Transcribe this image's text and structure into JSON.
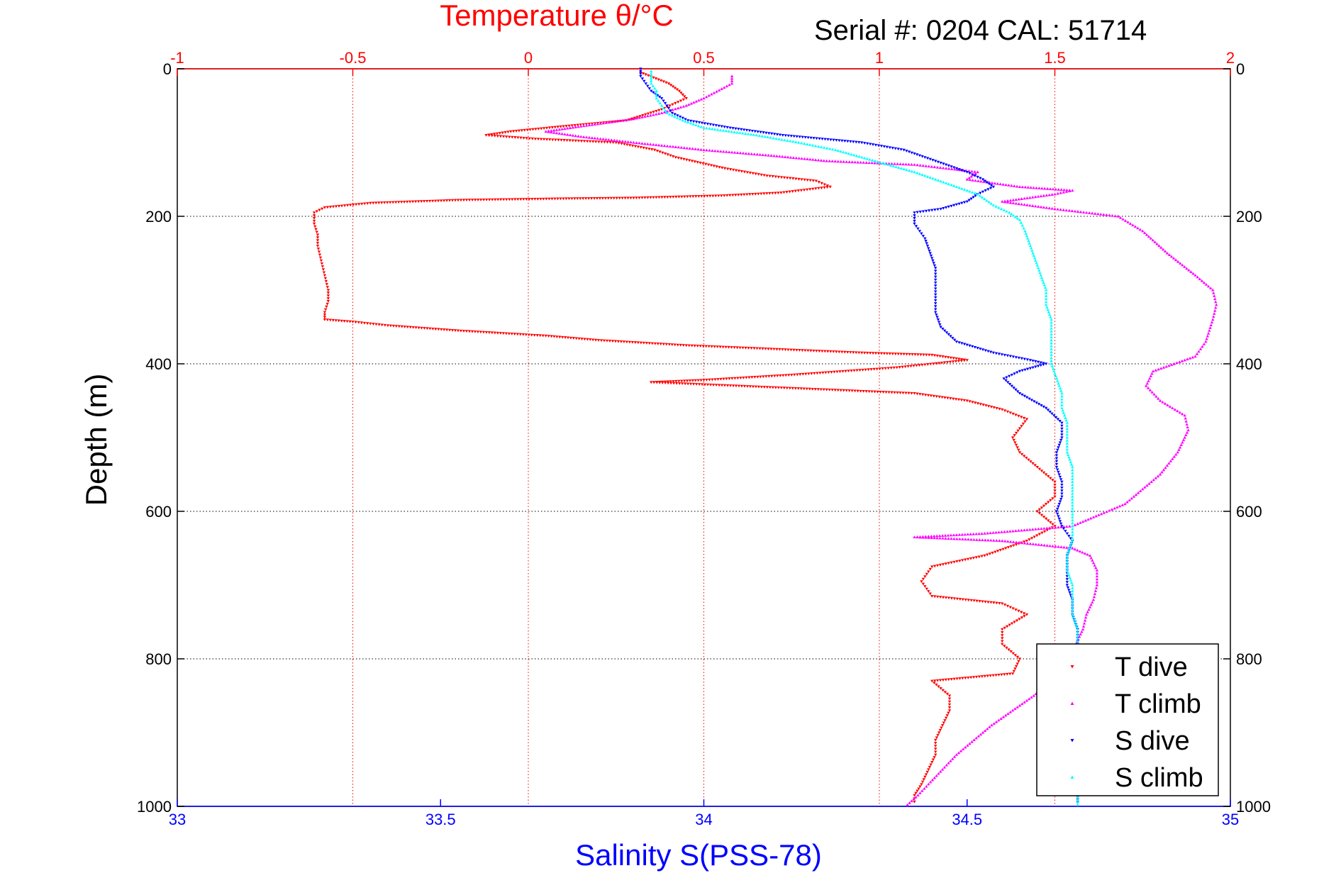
{
  "serial_text": "Serial #: 0204   CAL: 51714",
  "colors": {
    "t_dive": "#ff0000",
    "t_climb": "#ff00ff",
    "s_dive": "#0000ff",
    "s_climb": "#00ffff",
    "top_axis": "#ff0000",
    "bottom_axis": "#0000ff",
    "grid": "#000000"
  },
  "chart_data": {
    "type": "scatter",
    "top_axis": {
      "label": "Temperature θ/°C",
      "range": [
        -1,
        2
      ],
      "ticks": [
        "-1",
        "-0.5",
        "0",
        "0.5",
        "1",
        "1.5",
        "2"
      ]
    },
    "bottom_axis": {
      "label": "Salinity S(PSS-78)",
      "range": [
        33,
        35
      ],
      "ticks": [
        "33",
        "33.5",
        "34",
        "34.5",
        "35"
      ]
    },
    "y_axis": {
      "label": "Depth (m)",
      "range": [
        0,
        1000
      ],
      "reversed": true,
      "ticks": [
        "0",
        "200",
        "400",
        "600",
        "800",
        "1000"
      ]
    },
    "grid": true,
    "legend_position": "bottom-right",
    "series": [
      {
        "name": "T dive",
        "axis": "temperature",
        "points": [
          [
            0.32,
            5
          ],
          [
            0.4,
            20
          ],
          [
            0.43,
            30
          ],
          [
            0.45,
            40
          ],
          [
            0.38,
            55
          ],
          [
            0.28,
            70
          ],
          [
            0.1,
            78
          ],
          [
            -0.05,
            85
          ],
          [
            -0.12,
            90
          ],
          [
            0.02,
            95
          ],
          [
            0.25,
            100
          ],
          [
            0.36,
            110
          ],
          [
            0.42,
            120
          ],
          [
            0.56,
            135
          ],
          [
            0.68,
            145
          ],
          [
            0.82,
            152
          ],
          [
            0.86,
            160
          ],
          [
            0.72,
            168
          ],
          [
            0.55,
            172
          ],
          [
            0.3,
            175
          ],
          [
            0.1,
            176
          ],
          [
            -0.2,
            178
          ],
          [
            -0.45,
            182
          ],
          [
            -0.58,
            188
          ],
          [
            -0.61,
            195
          ],
          [
            -0.61,
            210
          ],
          [
            -0.6,
            225
          ],
          [
            -0.6,
            240
          ],
          [
            -0.59,
            260
          ],
          [
            -0.58,
            280
          ],
          [
            -0.57,
            300
          ],
          [
            -0.57,
            315
          ],
          [
            -0.58,
            330
          ],
          [
            -0.58,
            340
          ],
          [
            -0.5,
            343
          ],
          [
            -0.4,
            348
          ],
          [
            -0.2,
            355
          ],
          [
            0.05,
            362
          ],
          [
            0.2,
            368
          ],
          [
            0.45,
            375
          ],
          [
            0.7,
            380
          ],
          [
            0.95,
            385
          ],
          [
            1.15,
            388
          ],
          [
            1.25,
            395
          ],
          [
            1.05,
            405
          ],
          [
            0.75,
            415
          ],
          [
            0.5,
            422
          ],
          [
            0.35,
            425
          ],
          [
            0.6,
            430
          ],
          [
            0.85,
            435
          ],
          [
            1.1,
            440
          ],
          [
            1.25,
            450
          ],
          [
            1.35,
            462
          ],
          [
            1.42,
            475
          ],
          [
            1.38,
            500
          ],
          [
            1.4,
            520
          ],
          [
            1.45,
            540
          ],
          [
            1.5,
            560
          ],
          [
            1.5,
            580
          ],
          [
            1.45,
            600
          ],
          [
            1.5,
            620
          ],
          [
            1.42,
            640
          ],
          [
            1.3,
            660
          ],
          [
            1.15,
            675
          ],
          [
            1.12,
            695
          ],
          [
            1.15,
            715
          ],
          [
            1.35,
            725
          ],
          [
            1.42,
            740
          ],
          [
            1.35,
            760
          ],
          [
            1.35,
            780
          ],
          [
            1.4,
            800
          ],
          [
            1.38,
            820
          ],
          [
            1.15,
            830
          ],
          [
            1.2,
            850
          ],
          [
            1.2,
            870
          ],
          [
            1.18,
            890
          ],
          [
            1.16,
            910
          ],
          [
            1.16,
            930
          ],
          [
            1.14,
            950
          ],
          [
            1.12,
            970
          ],
          [
            1.1,
            985
          ],
          [
            1.1,
            998
          ]
        ]
      },
      {
        "name": "T climb",
        "axis": "temperature",
        "points": [
          [
            1.08,
            998
          ],
          [
            1.11,
            985
          ],
          [
            1.14,
            970
          ],
          [
            1.18,
            950
          ],
          [
            1.22,
            930
          ],
          [
            1.27,
            910
          ],
          [
            1.32,
            890
          ],
          [
            1.38,
            870
          ],
          [
            1.44,
            850
          ],
          [
            1.49,
            830
          ],
          [
            1.52,
            800
          ],
          [
            1.56,
            780
          ],
          [
            1.58,
            760
          ],
          [
            1.59,
            740
          ],
          [
            1.61,
            720
          ],
          [
            1.62,
            700
          ],
          [
            1.62,
            680
          ],
          [
            1.6,
            660
          ],
          [
            1.55,
            650
          ],
          [
            1.35,
            640
          ],
          [
            1.1,
            635
          ],
          [
            1.3,
            630
          ],
          [
            1.55,
            620
          ],
          [
            1.7,
            590
          ],
          [
            1.75,
            570
          ],
          [
            1.8,
            550
          ],
          [
            1.85,
            520
          ],
          [
            1.88,
            490
          ],
          [
            1.87,
            470
          ],
          [
            1.8,
            450
          ],
          [
            1.76,
            430
          ],
          [
            1.78,
            410
          ],
          [
            1.9,
            390
          ],
          [
            1.93,
            370
          ],
          [
            1.95,
            340
          ],
          [
            1.96,
            320
          ],
          [
            1.95,
            300
          ],
          [
            1.9,
            280
          ],
          [
            1.82,
            250
          ],
          [
            1.75,
            220
          ],
          [
            1.68,
            200
          ],
          [
            1.5,
            190
          ],
          [
            1.35,
            180
          ],
          [
            1.5,
            170
          ],
          [
            1.55,
            165
          ],
          [
            1.4,
            160
          ],
          [
            1.25,
            150
          ],
          [
            1.28,
            140
          ],
          [
            1.1,
            130
          ],
          [
            0.85,
            125
          ],
          [
            0.7,
            118
          ],
          [
            0.5,
            110
          ],
          [
            0.3,
            100
          ],
          [
            0.15,
            92
          ],
          [
            0.05,
            85
          ],
          [
            0.15,
            78
          ],
          [
            0.3,
            68
          ],
          [
            0.38,
            60
          ],
          [
            0.45,
            50
          ],
          [
            0.5,
            40
          ],
          [
            0.58,
            20
          ],
          [
            0.58,
            10
          ],
          [
            0.58,
            5
          ]
        ]
      },
      {
        "name": "S dive",
        "axis": "salinity",
        "points": [
          [
            33.88,
            0
          ],
          [
            33.88,
            10
          ],
          [
            33.89,
            20
          ],
          [
            33.9,
            30
          ],
          [
            33.92,
            40
          ],
          [
            33.94,
            60
          ],
          [
            33.97,
            70
          ],
          [
            34.05,
            80
          ],
          [
            34.15,
            90
          ],
          [
            34.3,
            100
          ],
          [
            34.38,
            110
          ],
          [
            34.42,
            120
          ],
          [
            34.46,
            130
          ],
          [
            34.5,
            140
          ],
          [
            34.53,
            150
          ],
          [
            34.55,
            160
          ],
          [
            34.52,
            170
          ],
          [
            34.5,
            180
          ],
          [
            34.45,
            190
          ],
          [
            34.4,
            195
          ],
          [
            34.4,
            210
          ],
          [
            34.42,
            230
          ],
          [
            34.43,
            250
          ],
          [
            34.44,
            270
          ],
          [
            34.44,
            290
          ],
          [
            34.44,
            310
          ],
          [
            34.44,
            330
          ],
          [
            34.45,
            350
          ],
          [
            34.48,
            370
          ],
          [
            34.55,
            385
          ],
          [
            34.62,
            395
          ],
          [
            34.65,
            400
          ],
          [
            34.6,
            410
          ],
          [
            34.57,
            420
          ],
          [
            34.6,
            440
          ],
          [
            34.65,
            460
          ],
          [
            34.68,
            480
          ],
          [
            34.68,
            500
          ],
          [
            34.67,
            520
          ],
          [
            34.67,
            540
          ],
          [
            34.68,
            560
          ],
          [
            34.68,
            580
          ],
          [
            34.67,
            600
          ],
          [
            34.68,
            620
          ],
          [
            34.7,
            640
          ],
          [
            34.69,
            660
          ],
          [
            34.69,
            680
          ],
          [
            34.69,
            700
          ],
          [
            34.7,
            720
          ],
          [
            34.7,
            740
          ],
          [
            34.71,
            760
          ],
          [
            34.71,
            780
          ],
          [
            34.71,
            800
          ],
          [
            34.71,
            820
          ],
          [
            34.71,
            840
          ],
          [
            34.71,
            860
          ],
          [
            34.71,
            880
          ],
          [
            34.71,
            900
          ],
          [
            34.71,
            920
          ],
          [
            34.71,
            940
          ],
          [
            34.71,
            960
          ],
          [
            34.71,
            980
          ],
          [
            34.71,
            998
          ]
        ]
      },
      {
        "name": "S climb",
        "axis": "salinity",
        "points": [
          [
            34.71,
            998
          ],
          [
            34.71,
            980
          ],
          [
            34.71,
            960
          ],
          [
            34.71,
            940
          ],
          [
            34.71,
            920
          ],
          [
            34.71,
            900
          ],
          [
            34.71,
            880
          ],
          [
            34.71,
            860
          ],
          [
            34.71,
            840
          ],
          [
            34.71,
            820
          ],
          [
            34.71,
            800
          ],
          [
            34.71,
            780
          ],
          [
            34.71,
            760
          ],
          [
            34.7,
            740
          ],
          [
            34.7,
            720
          ],
          [
            34.7,
            700
          ],
          [
            34.69,
            680
          ],
          [
            34.69,
            660
          ],
          [
            34.7,
            640
          ],
          [
            34.7,
            620
          ],
          [
            34.7,
            600
          ],
          [
            34.7,
            580
          ],
          [
            34.7,
            560
          ],
          [
            34.7,
            540
          ],
          [
            34.69,
            520
          ],
          [
            34.69,
            500
          ],
          [
            34.69,
            480
          ],
          [
            34.68,
            460
          ],
          [
            34.68,
            440
          ],
          [
            34.67,
            420
          ],
          [
            34.66,
            400
          ],
          [
            34.66,
            380
          ],
          [
            34.66,
            360
          ],
          [
            34.66,
            340
          ],
          [
            34.65,
            320
          ],
          [
            34.65,
            300
          ],
          [
            34.64,
            280
          ],
          [
            34.63,
            260
          ],
          [
            34.62,
            240
          ],
          [
            34.61,
            220
          ],
          [
            34.6,
            205
          ],
          [
            34.58,
            195
          ],
          [
            34.55,
            185
          ],
          [
            34.52,
            170
          ],
          [
            34.48,
            160
          ],
          [
            34.44,
            150
          ],
          [
            34.4,
            140
          ],
          [
            34.35,
            130
          ],
          [
            34.3,
            120
          ],
          [
            34.25,
            110
          ],
          [
            34.18,
            100
          ],
          [
            34.1,
            90
          ],
          [
            34.0,
            80
          ],
          [
            33.96,
            70
          ],
          [
            33.93,
            60
          ],
          [
            33.92,
            50
          ],
          [
            33.91,
            40
          ],
          [
            33.91,
            30
          ],
          [
            33.9,
            20
          ],
          [
            33.9,
            10
          ],
          [
            33.9,
            0
          ]
        ]
      }
    ]
  }
}
